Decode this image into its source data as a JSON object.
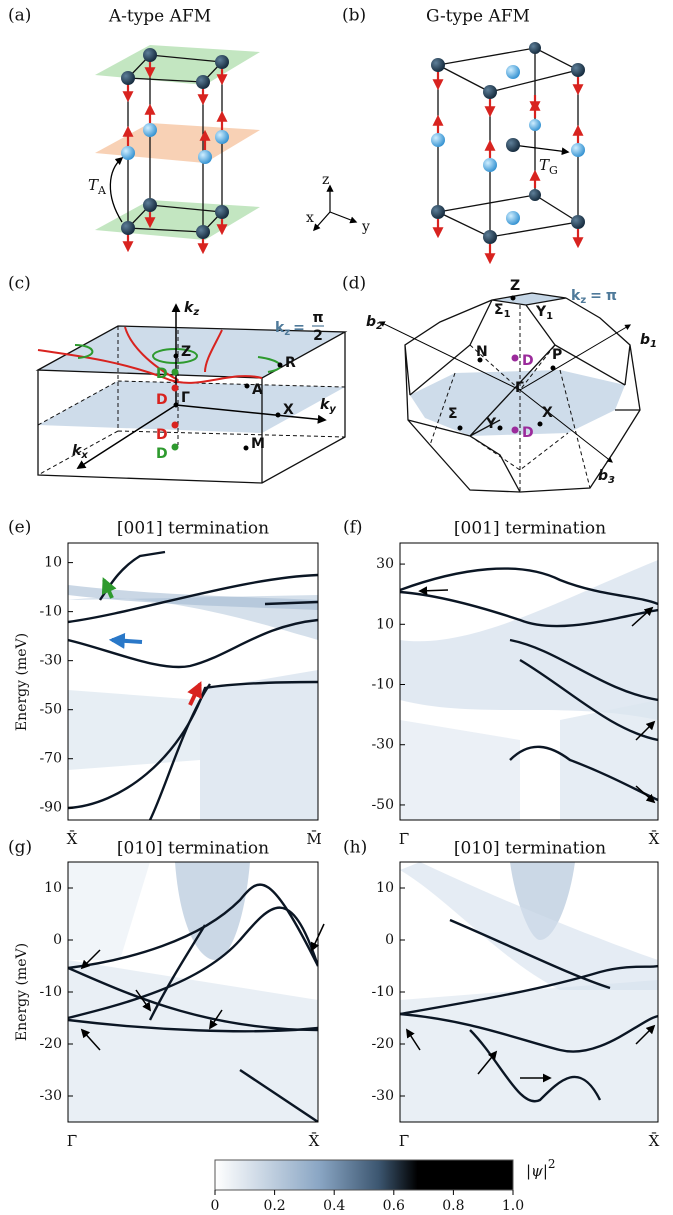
{
  "panels": {
    "a": {
      "label": "(a)",
      "title": "A-type AFM",
      "translation": {
        "symbol": "T",
        "sub": "A"
      }
    },
    "b": {
      "label": "(b)",
      "title": "G-type AFM",
      "translation": {
        "symbol": "T",
        "sub": "G"
      }
    },
    "axes3d": {
      "z": "z",
      "x": "x",
      "y": "y"
    },
    "c": {
      "label": "(c)",
      "axes": [
        {
          "symbol": "k",
          "sub": "z"
        },
        {
          "symbol": "k",
          "sub": "y"
        },
        {
          "symbol": "k",
          "sub": "x"
        }
      ],
      "plane": {
        "symbol": "k",
        "sub": "z",
        "eq": "=",
        "num": "π",
        "den": "2"
      },
      "points": [
        "Z",
        "Γ",
        "A",
        "R",
        "X",
        "M"
      ],
      "dirac": [
        "D",
        "D",
        "D",
        "D"
      ]
    },
    "d": {
      "label": "(d)",
      "vectors": [
        {
          "symbol": "b",
          "sub": "1"
        },
        {
          "symbol": "b",
          "sub": "2"
        },
        {
          "symbol": "b",
          "sub": "3"
        }
      ],
      "plane": {
        "symbol": "k",
        "sub": "z",
        "eq": "=",
        "value": "π"
      },
      "points": [
        "Z",
        "N",
        "P",
        "Γ",
        "Σ",
        "Y",
        "X"
      ],
      "sub_points": [
        {
          "symbol": "Σ",
          "sub": "1"
        },
        {
          "symbol": "Y",
          "sub": "1"
        }
      ],
      "dirac": [
        "D",
        "D"
      ]
    },
    "e": {
      "label": "(e)",
      "title": "[001] termination",
      "ylabel": "Energy (meV)",
      "xticks": [
        "X̄",
        "M̄"
      ],
      "ylim": [
        -95,
        18
      ],
      "yticks": [
        10,
        -10,
        -30,
        -50,
        -70,
        -90
      ]
    },
    "f": {
      "label": "(f)",
      "title": "[001] termination",
      "xticks": [
        "Γ̄",
        "X̄"
      ],
      "ylim": [
        -55,
        37
      ],
      "yticks": [
        30,
        10,
        -10,
        -30,
        -50
      ]
    },
    "g": {
      "label": "(g)",
      "title": "[010] termination",
      "ylabel": "Energy (meV)",
      "xticks": [
        "Γ̄",
        "X̄"
      ],
      "ylim": [
        -35,
        15
      ],
      "yticks": [
        10,
        0,
        -10,
        -20,
        -30
      ]
    },
    "h": {
      "label": "(h)",
      "title": "[010] termination",
      "xticks": [
        "Γ̄",
        "X̄"
      ],
      "ylim": [
        -35,
        15
      ],
      "yticks": [
        10,
        0,
        -10,
        -20,
        -30
      ]
    }
  },
  "colorbar": {
    "lim": [
      0,
      1
    ],
    "ticks": [
      0,
      0.2,
      0.4,
      0.6,
      0.8,
      {
        "value": 1,
        "label": "1.0"
      }
    ],
    "label": {
      "text": "|ψ|",
      "sup": "2"
    }
  }
}
